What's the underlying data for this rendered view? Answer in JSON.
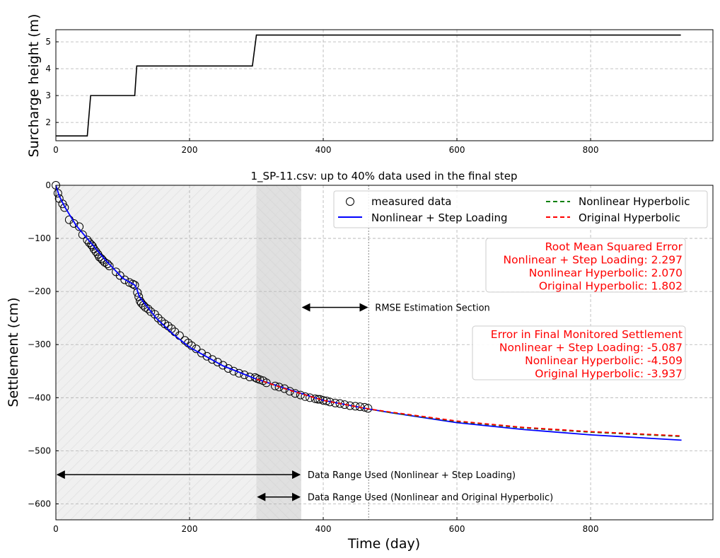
{
  "chart_data": [
    {
      "type": "line",
      "ylabel": "Surcharge height (m)",
      "xlim": [
        0,
        983
      ],
      "ylim": [
        1.32,
        5.45
      ],
      "xticks": [
        0,
        200,
        400,
        600,
        800
      ],
      "yticks": [
        2,
        3,
        4,
        5
      ],
      "grid": true,
      "series": [
        {
          "color": "#000000",
          "x": [
            0,
            47,
            52,
            118,
            121,
            294,
            300,
            935
          ],
          "y": [
            1.5,
            1.5,
            3.0,
            3.0,
            4.1,
            4.1,
            5.25,
            5.25
          ]
        }
      ]
    },
    {
      "type": "line",
      "title": "1_SP-11.csv: up to 40% data used in the final step",
      "xlabel": "Time (day)",
      "ylabel": "Settlement (cm)",
      "xlim": [
        0,
        983
      ],
      "ylim": [
        -630,
        0
      ],
      "xticks": [
        0,
        200,
        400,
        600,
        800
      ],
      "yticks": [
        0,
        -100,
        -200,
        -300,
        -400,
        -500,
        -600
      ],
      "grid": true,
      "legend": {
        "placement": "top-right",
        "entries": [
          "measured data",
          "Nonlinear + Step Loading",
          "Nonlinear Hyperbolic",
          "Original Hyperbolic"
        ]
      },
      "measured": {
        "name": "measured data",
        "x": [
          0,
          3,
          5,
          10,
          13,
          20,
          27,
          35,
          40,
          47,
          50,
          53,
          55,
          57,
          60,
          63,
          65,
          68,
          70,
          73,
          77,
          80,
          90,
          96,
          103,
          110,
          115,
          118,
          122,
          124,
          126,
          128,
          131,
          134,
          138,
          142,
          148,
          153,
          158,
          163,
          168,
          173,
          178,
          185,
          193,
          198,
          203,
          210,
          218,
          226,
          234,
          242,
          250,
          258,
          266,
          274,
          282,
          290,
          298,
          301,
          305,
          310,
          315,
          328,
          334,
          342,
          350,
          358,
          366,
          373,
          380,
          388,
          392,
          395,
          400,
          405,
          410,
          418,
          425,
          432,
          440,
          448,
          455,
          462,
          467
        ],
        "y": [
          0,
          -15,
          -25,
          -35,
          -42,
          -65,
          -72,
          -78,
          -93,
          -103,
          -108,
          -112,
          -115,
          -120,
          -125,
          -130,
          -135,
          -138,
          -141,
          -145,
          -148,
          -152,
          -163,
          -170,
          -178,
          -183,
          -186,
          -188,
          -202,
          -210,
          -218,
          -222,
          -226,
          -230,
          -233,
          -238,
          -243,
          -250,
          -256,
          -261,
          -265,
          -270,
          -276,
          -283,
          -292,
          -297,
          -302,
          -308,
          -316,
          -322,
          -328,
          -333,
          -339,
          -345,
          -350,
          -354,
          -357,
          -361,
          -362,
          -364,
          -366,
          -368,
          -372,
          -378,
          -380,
          -383,
          -388,
          -392,
          -395,
          -398,
          -400,
          -402,
          -403,
          -403,
          -405,
          -406,
          -408,
          -410,
          -411,
          -413,
          -415,
          -416,
          -417,
          -418,
          -420
        ]
      },
      "series": [
        {
          "name": "Nonlinear + Step Loading",
          "color": "#0000ff",
          "dash": false,
          "x": [
            0,
            5,
            13,
            30,
            50,
            75,
            100,
            118,
            121,
            125,
            150,
            175,
            200,
            250,
            300,
            350,
            400,
            467,
            500,
            600,
            700,
            800,
            936
          ],
          "y": [
            0,
            -20,
            -40,
            -75,
            -105,
            -142,
            -175,
            -188,
            -195,
            -210,
            -250,
            -280,
            -305,
            -340,
            -365,
            -385,
            -405,
            -421,
            -428,
            -447,
            -460,
            -470,
            -480
          ]
        },
        {
          "name": "Nonlinear Hyperbolic",
          "color": "#008000",
          "dash": true,
          "x": [
            300,
            350,
            400,
            467,
            500,
            600,
            700,
            800,
            936
          ],
          "y": [
            -365,
            -386,
            -405,
            -421,
            -428,
            -445,
            -457,
            -465,
            -473
          ]
        },
        {
          "name": "Original Hyperbolic",
          "color": "#ff0000",
          "dash": true,
          "x": [
            300,
            350,
            400,
            467,
            500,
            600,
            700,
            800,
            936
          ],
          "y": [
            -365,
            -386,
            -405,
            -421,
            -427,
            -444,
            -456,
            -464,
            -472
          ]
        }
      ],
      "regions": [
        {
          "from": 0,
          "to": 367,
          "fill": "#f0f0f0"
        },
        {
          "from": 300,
          "to": 367,
          "fill": "#e0e0e0"
        }
      ],
      "vline": 468,
      "annotations": [
        {
          "text": "RMSE Estimation Section",
          "from": 367,
          "to": 468,
          "y": -230
        },
        {
          "text": "Data Range Used (Nonlinear + Step Loading)",
          "from": 0,
          "to": 367,
          "y": -545
        },
        {
          "text": "Data Range Used (Nonlinear and Original Hyperbolic)",
          "from": 300,
          "to": 367,
          "y": -587
        }
      ],
      "rmse_box": [
        "Root Mean Squared Error",
        "Nonlinear + Step Loading: 2.297",
        "Nonlinear Hyperbolic: 2.070",
        "Original Hyperbolic: 1.802"
      ],
      "final_box": [
        "Error in Final Monitored Settlement",
        "Nonlinear + Step Loading: -5.087",
        "Nonlinear Hyperbolic: -4.509",
        "Original Hyperbolic: -3.937"
      ]
    }
  ]
}
